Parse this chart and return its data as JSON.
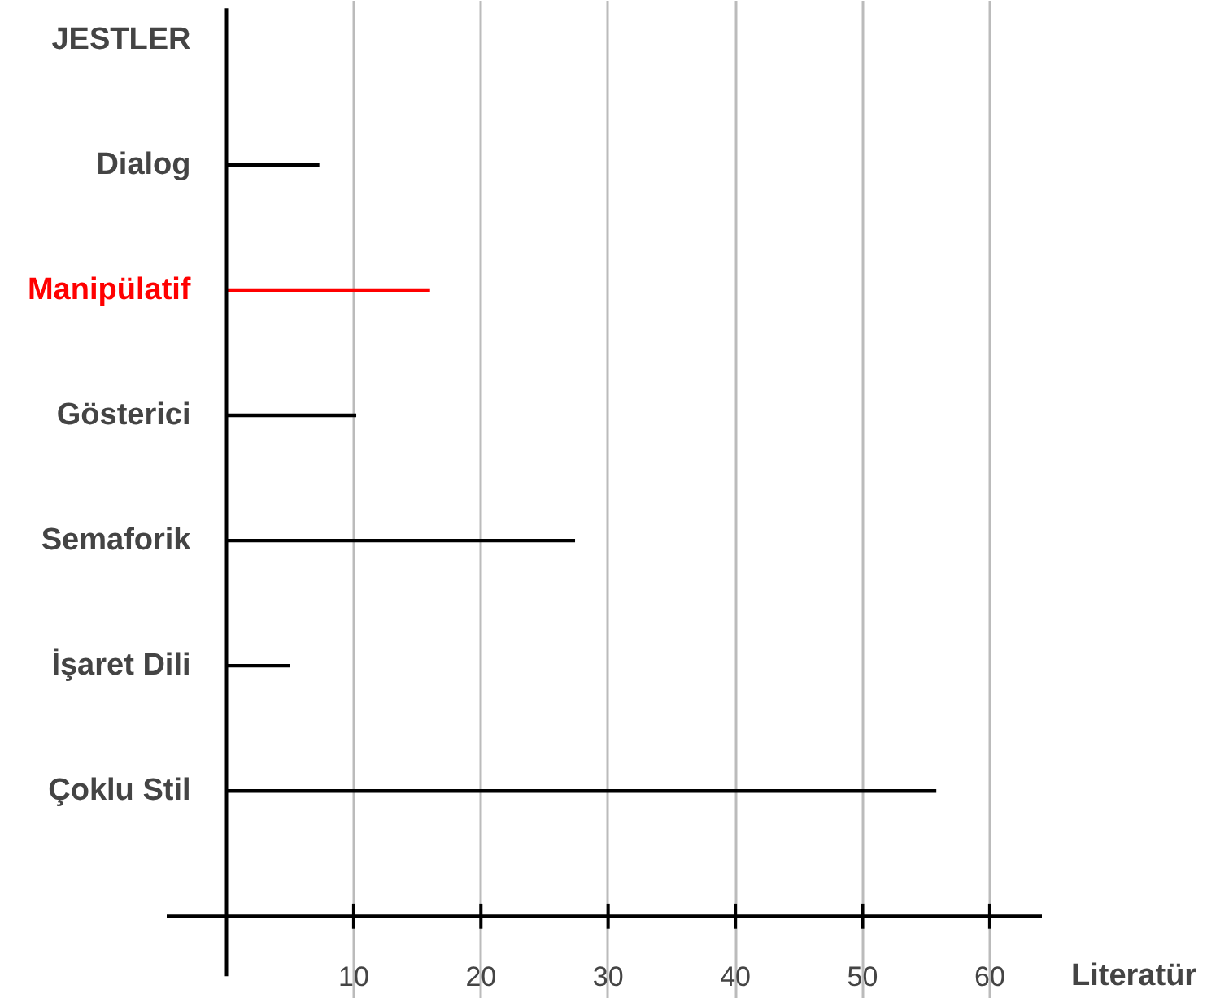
{
  "chart_data": {
    "type": "bar",
    "orientation": "horizontal",
    "ylabel": "JESTLER",
    "xlabel": "Literatür",
    "categories": [
      "Dialog",
      "Manipülatif",
      "Gösterici",
      "Semaforik",
      "İşaret Dili",
      "Çoklu Stil"
    ],
    "values": [
      7.3,
      16,
      10.2,
      27.4,
      5,
      55.8
    ],
    "colors": [
      "#000000",
      "#ff0000",
      "#000000",
      "#000000",
      "#000000",
      "#000000"
    ],
    "xlim": [
      -4.7,
      64.1
    ],
    "xticks": [
      10,
      20,
      30,
      40,
      50,
      60
    ],
    "grid": "x"
  }
}
